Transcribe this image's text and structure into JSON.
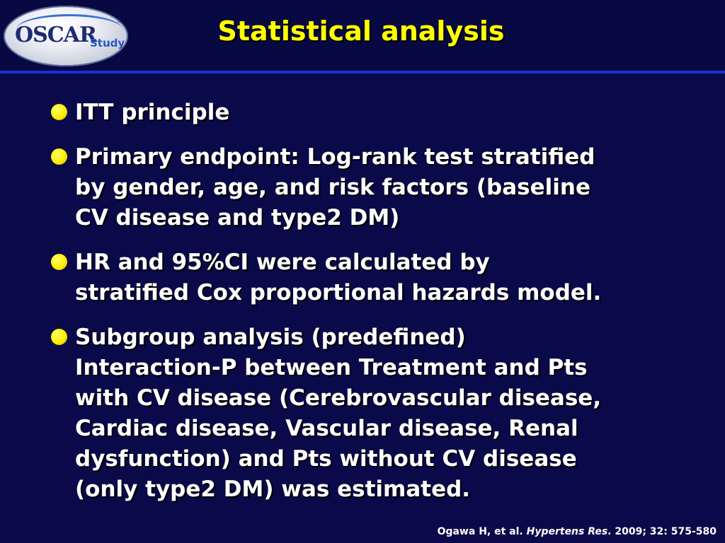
{
  "logo": {
    "main": "OSCAR",
    "sub": "Study",
    "tm": "™"
  },
  "title": "Statistical analysis",
  "bullets": [
    {
      "lines": [
        "ITT principle"
      ]
    },
    {
      "lines": [
        "Primary endpoint: Log-rank test stratified",
        "by gender, age, and risk factors (baseline",
        "CV disease and type2 DM)"
      ]
    },
    {
      "lines": [
        "HR and 95%CI were calculated by",
        "stratified Cox proportional hazards model."
      ]
    },
    {
      "lines": [
        "Subgroup analysis (predefined)",
        "Interaction-P between Treatment and Pts",
        "with CV disease (Cerebrovascular disease,",
        "Cardiac disease, Vascular disease, Renal",
        "dysfunction) and Pts without CV disease",
        "(only type2 DM) was estimated."
      ]
    }
  ],
  "citation": {
    "authors": "Ogawa H, et al.",
    "journal": "Hypertens Res",
    "details": ". 2009; 32: 575-580"
  },
  "colors": {
    "background": "#0a0a4a",
    "title": "#ffff00",
    "bullet": "#ffee00",
    "rule": "#1a2fd8",
    "text": "#ffffff"
  }
}
